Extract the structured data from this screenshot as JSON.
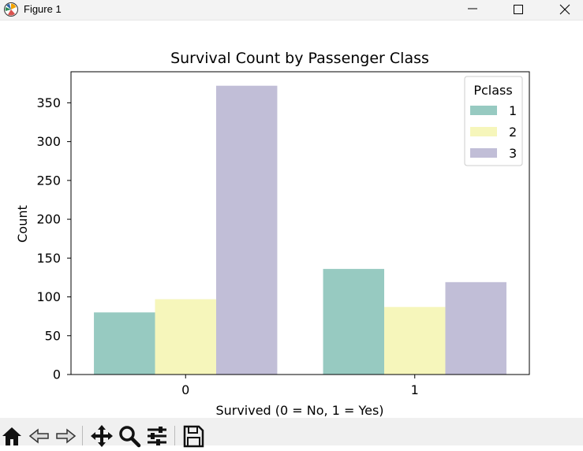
{
  "window": {
    "title": "Figure 1",
    "icons": [
      "figure-app-icon",
      "minimize-icon",
      "maximize-icon",
      "close-icon"
    ]
  },
  "toolbar": {
    "buttons": [
      "home-icon",
      "back-icon",
      "forward-icon",
      "pan-icon",
      "zoom-icon",
      "configure-subplots-icon",
      "save-icon"
    ]
  },
  "colors": {
    "pclass_1": "#97cac1",
    "pclass_2": "#f6f6bb",
    "pclass_3": "#c1bed7"
  },
  "chart_data": {
    "type": "bar",
    "title": "Survival Count by Passenger Class",
    "xlabel": "Survived (0 = No, 1 = Yes)",
    "ylabel": "Count",
    "categories": [
      "0",
      "1"
    ],
    "series": [
      {
        "name": "1",
        "values": [
          80,
          136
        ]
      },
      {
        "name": "2",
        "values": [
          97,
          87
        ]
      },
      {
        "name": "3",
        "values": [
          372,
          119
        ]
      }
    ],
    "ylim": [
      0,
      390
    ],
    "yticks": [
      "0",
      "50",
      "100",
      "150",
      "200",
      "250",
      "300",
      "350"
    ],
    "legend": {
      "title": "Pclass",
      "position": "top-right"
    },
    "grid": false
  }
}
